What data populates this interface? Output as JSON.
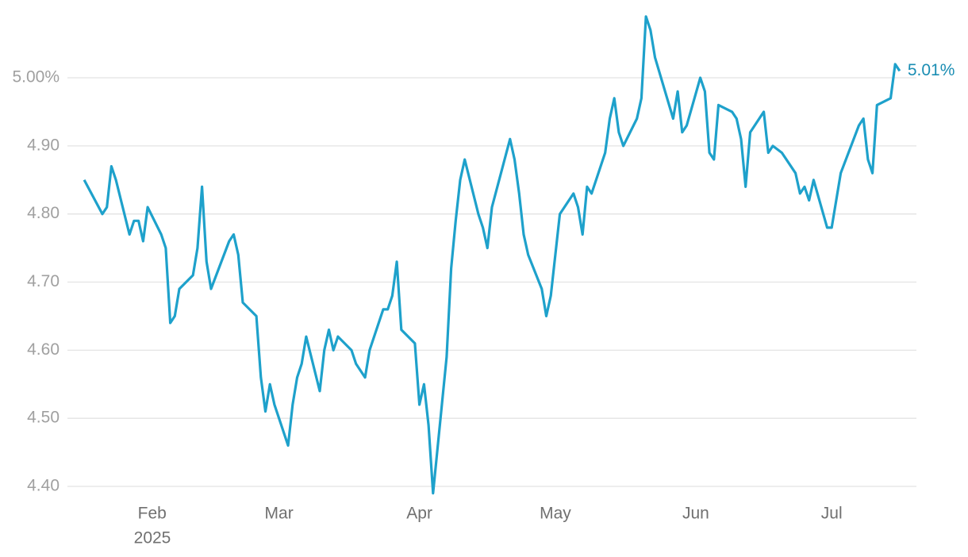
{
  "chart_data": {
    "type": "line",
    "x": [
      17,
      21,
      22,
      23,
      24,
      27,
      28,
      29,
      30,
      31,
      34,
      35,
      36,
      37,
      38,
      41,
      42,
      43,
      44,
      45,
      49,
      50,
      51,
      52,
      55,
      56,
      57,
      58,
      59,
      62,
      63,
      64,
      65,
      66,
      69,
      70,
      71,
      72,
      73,
      76,
      77,
      79,
      80,
      83,
      84,
      85,
      86,
      87,
      90,
      91,
      92,
      93,
      94,
      97,
      98,
      99,
      100,
      101,
      104,
      105,
      106,
      107,
      111,
      112,
      113,
      114,
      115,
      118,
      119,
      120,
      121,
      122,
      125,
      126,
      127,
      128,
      129,
      132,
      133,
      134,
      135,
      136,
      139,
      140,
      141,
      142,
      143,
      147,
      148,
      149,
      150,
      153,
      154,
      155,
      156,
      157,
      160,
      161,
      162,
      163,
      164,
      167,
      168,
      169,
      171,
      174,
      175,
      176,
      177,
      178,
      181,
      182,
      184,
      188,
      189,
      190,
      191,
      192,
      195,
      196,
      197
    ],
    "series": [
      {
        "color": "#1ea1cb",
        "values": [
          4.85,
          4.8,
          4.81,
          4.87,
          4.85,
          4.77,
          4.79,
          4.79,
          4.76,
          4.81,
          4.77,
          4.75,
          4.64,
          4.65,
          4.69,
          4.71,
          4.75,
          4.84,
          4.73,
          4.69,
          4.76,
          4.77,
          4.74,
          4.67,
          4.65,
          4.56,
          4.51,
          4.55,
          4.52,
          4.46,
          4.52,
          4.56,
          4.58,
          4.62,
          4.54,
          4.6,
          4.63,
          4.6,
          4.62,
          4.6,
          4.58,
          4.56,
          4.6,
          4.66,
          4.66,
          4.68,
          4.73,
          4.63,
          4.61,
          4.52,
          4.55,
          4.49,
          4.39,
          4.59,
          4.72,
          4.79,
          4.85,
          4.88,
          4.8,
          4.78,
          4.75,
          4.81,
          4.91,
          4.88,
          4.83,
          4.77,
          4.74,
          4.69,
          4.65,
          4.68,
          4.74,
          4.8,
          4.83,
          4.81,
          4.77,
          4.84,
          4.83,
          4.89,
          4.94,
          4.97,
          4.92,
          4.9,
          4.94,
          4.97,
          5.09,
          5.07,
          5.03,
          4.94,
          4.98,
          4.92,
          4.93,
          5.0,
          4.98,
          4.89,
          4.88,
          4.96,
          4.95,
          4.94,
          4.91,
          4.84,
          4.92,
          4.95,
          4.89,
          4.9,
          4.89,
          4.86,
          4.83,
          4.84,
          4.82,
          4.85,
          4.78,
          4.78,
          4.86,
          4.93,
          4.94,
          4.88,
          4.86,
          4.96,
          4.97,
          5.02,
          5.01
        ]
      }
    ],
    "end_label": "5.01%",
    "end_label_color": "#1a8db3",
    "xlim": [
      13.3,
      200.7
    ],
    "xticks": [
      {
        "value": 32,
        "label": "Feb"
      },
      {
        "value": 60,
        "label": "Mar"
      },
      {
        "value": 91,
        "label": "Apr"
      },
      {
        "value": 121,
        "label": "May"
      },
      {
        "value": 152,
        "label": "Jun"
      },
      {
        "value": 182,
        "label": "Jul"
      }
    ],
    "year_label": "2025",
    "ylim": [
      4.38,
      5.1
    ],
    "yticks": [
      {
        "value": 4.4,
        "label": "4.40"
      },
      {
        "value": 4.5,
        "label": "4.50"
      },
      {
        "value": 4.6,
        "label": "4.60"
      },
      {
        "value": 4.7,
        "label": "4.70"
      },
      {
        "value": 4.8,
        "label": "4.80"
      },
      {
        "value": 4.9,
        "label": "4.90"
      },
      {
        "value": 5.0,
        "label": "5.00%"
      }
    ],
    "grid": true
  }
}
